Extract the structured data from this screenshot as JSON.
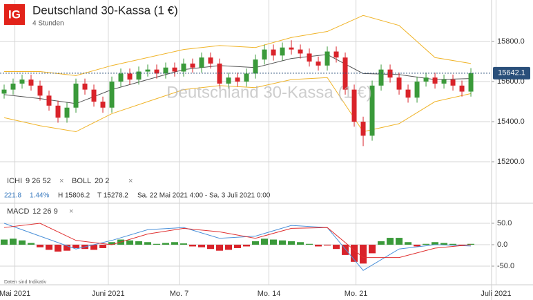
{
  "header": {
    "logo": "IG",
    "title": "Deutschland 30-Kassa (1 €)",
    "subtitle": "4 Stunden"
  },
  "indicators": [
    {
      "name": "ICHI",
      "params": "9 26 52"
    },
    {
      "name": "BOLL",
      "params": "20 2"
    }
  ],
  "info": {
    "change": "221.8",
    "change_pct": "1.44%",
    "high": "H 15806.2",
    "low": "T 15278.2",
    "range": "Sa. 22 Mai 2021 4:00 - Sa. 3 Juli 2021 0:00"
  },
  "macd_label": {
    "name": "MACD",
    "params": "12 26 9"
  },
  "disclaimer": "Daten sind Indikativ",
  "chart_data": [
    {
      "type": "candlestick",
      "xlim": [
        -0.46,
        54.15
      ],
      "ylim": [
        15138,
        16007
      ],
      "yticks": [
        {
          "value": 15800,
          "label": "15800.0"
        },
        {
          "value": 15600,
          "label": "15600.0"
        },
        {
          "value": 15400,
          "label": "15400.0"
        },
        {
          "value": 15200,
          "label": "15200.0"
        }
      ],
      "xticks": [
        {
          "value": 1.2,
          "label": "Mai 2021"
        },
        {
          "value": 11.6,
          "label": "Juni 2021"
        },
        {
          "value": 19.5,
          "label": "Mo. 7"
        },
        {
          "value": 29.5,
          "label": "Mo. 14"
        },
        {
          "value": 39.2,
          "label": "Mo. 21"
        },
        {
          "value": 54.8,
          "label": "Juli 2021"
        }
      ],
      "up_color": "#3a9a3a",
      "down_color": "#d9232a",
      "open": [
        15540,
        15560,
        15590,
        15610,
        15580,
        15530,
        15480,
        15420,
        15470,
        15590,
        15560,
        15500,
        15470,
        15600,
        15640,
        15610,
        15650,
        15660,
        15640,
        15670,
        15650,
        15690,
        15670,
        15720,
        15690,
        15590,
        15620,
        15600,
        15640,
        15710,
        15760,
        15730,
        15770,
        15760,
        15740,
        15700,
        15680,
        15750,
        15720,
        15560,
        15400,
        15330,
        15580,
        15660,
        15620,
        15560,
        15520,
        15600,
        15620,
        15590,
        15610,
        15580,
        15550
      ],
      "high": [
        15585,
        15615,
        15635,
        15635,
        15605,
        15555,
        15505,
        15495,
        15615,
        15615,
        15585,
        15525,
        15625,
        15665,
        15665,
        15675,
        15685,
        15685,
        15695,
        15695,
        15715,
        15715,
        15745,
        15745,
        15715,
        15645,
        15645,
        15665,
        15735,
        15785,
        15785,
        15795,
        15806.2,
        15785,
        15765,
        15725,
        15775,
        15775,
        15745,
        15585,
        15425,
        15605,
        15685,
        15685,
        15645,
        15585,
        15625,
        15645,
        15645,
        15635,
        15635,
        15605,
        15667
      ],
      "low": [
        15515,
        15535,
        15565,
        15555,
        15505,
        15455,
        15395,
        15395,
        15445,
        15535,
        15475,
        15445,
        15445,
        15575,
        15585,
        15585,
        15625,
        15615,
        15615,
        15625,
        15625,
        15645,
        15645,
        15665,
        15565,
        15565,
        15575,
        15575,
        15615,
        15685,
        15705,
        15705,
        15735,
        15715,
        15675,
        15655,
        15655,
        15695,
        15535,
        15375,
        15278.2,
        15305,
        15555,
        15595,
        15535,
        15495,
        15495,
        15575,
        15565,
        15565,
        15555,
        15525,
        15525
      ],
      "close": [
        15560,
        15590,
        15610,
        15580,
        15530,
        15480,
        15420,
        15470,
        15590,
        15560,
        15500,
        15470,
        15600,
        15640,
        15610,
        15650,
        15660,
        15640,
        15670,
        15650,
        15690,
        15670,
        15720,
        15690,
        15590,
        15620,
        15600,
        15640,
        15710,
        15760,
        15730,
        15770,
        15760,
        15740,
        15700,
        15680,
        15750,
        15720,
        15560,
        15400,
        15330,
        15580,
        15660,
        15620,
        15560,
        15520,
        15600,
        15620,
        15590,
        15610,
        15580,
        15550,
        15642.1
      ],
      "last_price": {
        "value": 15642.1,
        "label": "15642.1"
      },
      "series": [
        {
          "name": "Upper",
          "color": "#f0b429",
          "x": [
            0,
            4,
            8,
            12,
            16,
            20,
            24,
            28,
            32,
            36,
            40,
            44,
            48,
            52
          ],
          "values": [
            15650,
            15650,
            15630,
            15680,
            15720,
            15760,
            15780,
            15770,
            15820,
            15850,
            15930,
            15880,
            15720,
            15690
          ]
        },
        {
          "name": "Middle",
          "color": "#555555",
          "x": [
            0,
            4,
            8,
            12,
            16,
            20,
            24,
            28,
            32,
            36,
            40,
            44,
            48,
            52
          ],
          "values": [
            15535,
            15515,
            15490,
            15560,
            15610,
            15660,
            15680,
            15670,
            15715,
            15735,
            15640,
            15635,
            15610,
            15615
          ]
        },
        {
          "name": "Lower",
          "color": "#f0b429",
          "x": [
            0,
            4,
            8,
            12,
            16,
            20,
            24,
            28,
            32,
            36,
            40,
            44,
            48,
            52
          ],
          "values": [
            15420,
            15380,
            15350,
            15440,
            15500,
            15560,
            15580,
            15570,
            15610,
            15620,
            15350,
            15390,
            15500,
            15540
          ]
        }
      ]
    },
    {
      "type": "macd",
      "xlim": [
        -0.46,
        54.15
      ],
      "ylim": [
        -90.3,
        91.9
      ],
      "yticks": [
        {
          "value": 50,
          "label": "50.0"
        },
        {
          "value": 0,
          "label": "0.0"
        },
        {
          "value": -50,
          "label": "-50.0"
        }
      ],
      "up_color": "#3a9a3a",
      "down_color": "#d9232a",
      "histogram": [
        12,
        14,
        10,
        4,
        -6,
        -12,
        -16,
        -14,
        -8,
        -10,
        -12,
        -8,
        6,
        12,
        10,
        8,
        6,
        2,
        4,
        6,
        3,
        -4,
        -6,
        -10,
        -14,
        -12,
        -8,
        -4,
        8,
        14,
        12,
        10,
        8,
        6,
        2,
        -4,
        -2,
        -10,
        -24,
        -40,
        -44,
        -20,
        8,
        16,
        16,
        6,
        -4,
        2,
        6,
        4,
        2,
        -2,
        2
      ],
      "series": [
        {
          "name": "MACD",
          "color": "#4a90d9",
          "x": [
            0,
            4,
            8,
            12,
            16,
            20,
            24,
            28,
            32,
            36,
            40,
            44,
            48,
            52
          ],
          "values": [
            50,
            20,
            -10,
            10,
            35,
            40,
            15,
            20,
            45,
            40,
            -60,
            -10,
            0,
            -3
          ]
        },
        {
          "name": "Signal",
          "color": "#e03030",
          "x": [
            0,
            4,
            8,
            12,
            16,
            20,
            24,
            28,
            32,
            36,
            40,
            44,
            48,
            52
          ],
          "values": [
            40,
            50,
            10,
            0,
            25,
            38,
            30,
            15,
            38,
            40,
            -30,
            -30,
            -8,
            0
          ]
        }
      ]
    }
  ]
}
